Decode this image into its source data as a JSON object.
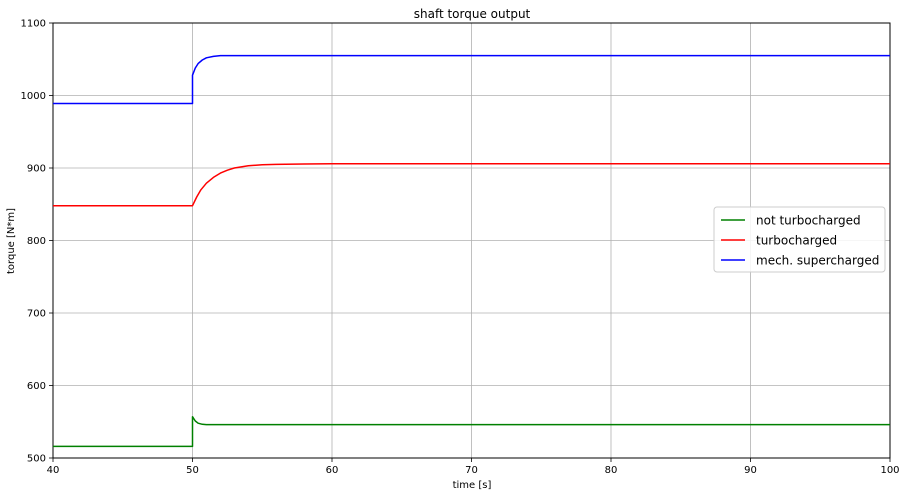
{
  "chart_data": {
    "type": "line",
    "title": "shaft torque output",
    "xlabel": "time [s]",
    "ylabel": "torque [N*m]",
    "xlim": [
      40,
      100
    ],
    "ylim": [
      500,
      1100
    ],
    "xticks": [
      40,
      50,
      60,
      70,
      80,
      90,
      100
    ],
    "yticks": [
      500,
      600,
      700,
      800,
      900,
      1000,
      1100
    ],
    "grid": true,
    "legend_position": "center-right",
    "series": [
      {
        "name": "not turbocharged",
        "color": "#008000",
        "x": [
          40,
          50,
          50,
          50.1,
          50.2,
          50.4,
          50.7,
          51,
          52,
          55,
          60,
          70,
          80,
          90,
          100
        ],
        "y": [
          516,
          516,
          557,
          554,
          551,
          548,
          546.5,
          546,
          546,
          546,
          546,
          546,
          546,
          546,
          546
        ]
      },
      {
        "name": "turbocharged",
        "color": "#ff0000",
        "x": [
          40,
          50,
          50.3,
          50.6,
          51,
          51.5,
          52,
          52.5,
          53,
          54,
          55,
          56,
          58,
          60,
          70,
          80,
          90,
          100
        ],
        "y": [
          848,
          848,
          860,
          870,
          879,
          887,
          893,
          897,
          900,
          903,
          904.5,
          905,
          905.5,
          906,
          906,
          906,
          906,
          906
        ]
      },
      {
        "name": "mech. supercharged",
        "color": "#0000ff",
        "x": [
          40,
          50,
          50,
          50.2,
          50.4,
          50.7,
          51,
          51.5,
          52,
          53,
          55,
          60,
          70,
          80,
          90,
          100
        ],
        "y": [
          989,
          989,
          1028,
          1038,
          1044,
          1049,
          1052,
          1054,
          1055,
          1055,
          1055,
          1055,
          1055,
          1055,
          1055,
          1055
        ]
      }
    ]
  }
}
